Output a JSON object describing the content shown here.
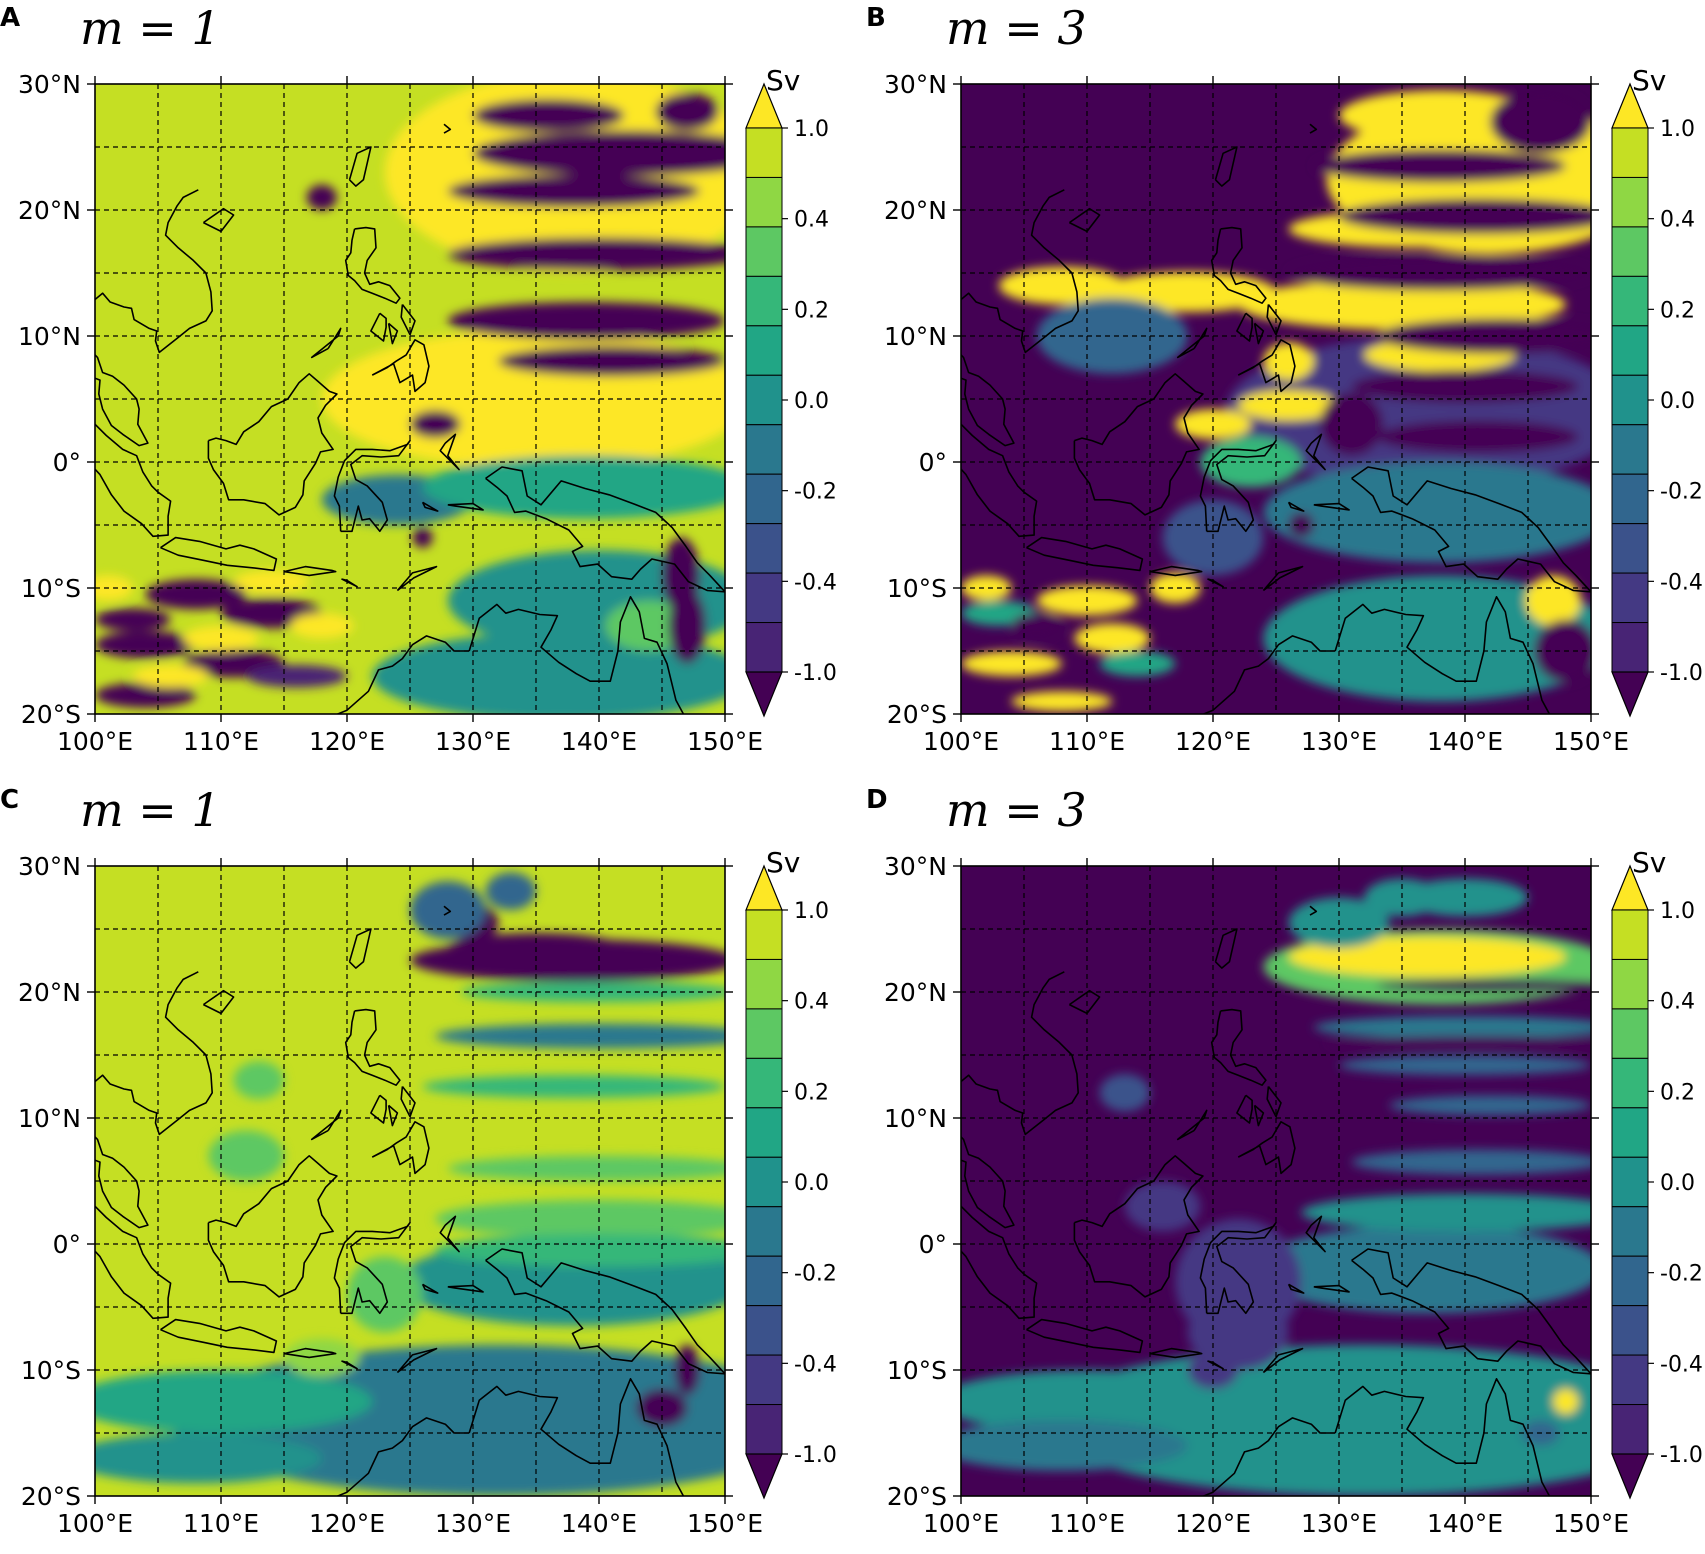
{
  "figure": {
    "panels": [
      {
        "letter": "A",
        "title": "m = 1",
        "variant": "A"
      },
      {
        "letter": "B",
        "title": "m = 3",
        "variant": "B"
      },
      {
        "letter": "C",
        "title": "m = 1",
        "variant": "C"
      },
      {
        "letter": "D",
        "title": "m = 3",
        "variant": "D"
      }
    ],
    "lat_labels": [
      "30°N",
      "20°N",
      "10°N",
      "0°",
      "10°S",
      "20°S"
    ],
    "lon_labels": [
      "100°E",
      "110°E",
      "120°E",
      "130°E",
      "140°E",
      "150°E"
    ],
    "extent": {
      "lon_min": 100,
      "lon_max": 150,
      "lat_min": -20,
      "lat_max": 30
    },
    "gridlines": {
      "lon_step": 5,
      "lat_step": 5,
      "style": "dashed"
    },
    "colorbar": {
      "unit": "Sv",
      "tick_labels": [
        "1.0",
        "0.4",
        "0.2",
        "0.0",
        "-0.2",
        "-0.4",
        "-1.0"
      ],
      "extend": "both",
      "colors": [
        "#fde725",
        "#c5df23",
        "#8fd744",
        "#5dc863",
        "#35b779",
        "#21a685",
        "#20928c",
        "#2a788e",
        "#31668e",
        "#3b528b",
        "#443983",
        "#482475",
        "#440154"
      ]
    }
  }
}
